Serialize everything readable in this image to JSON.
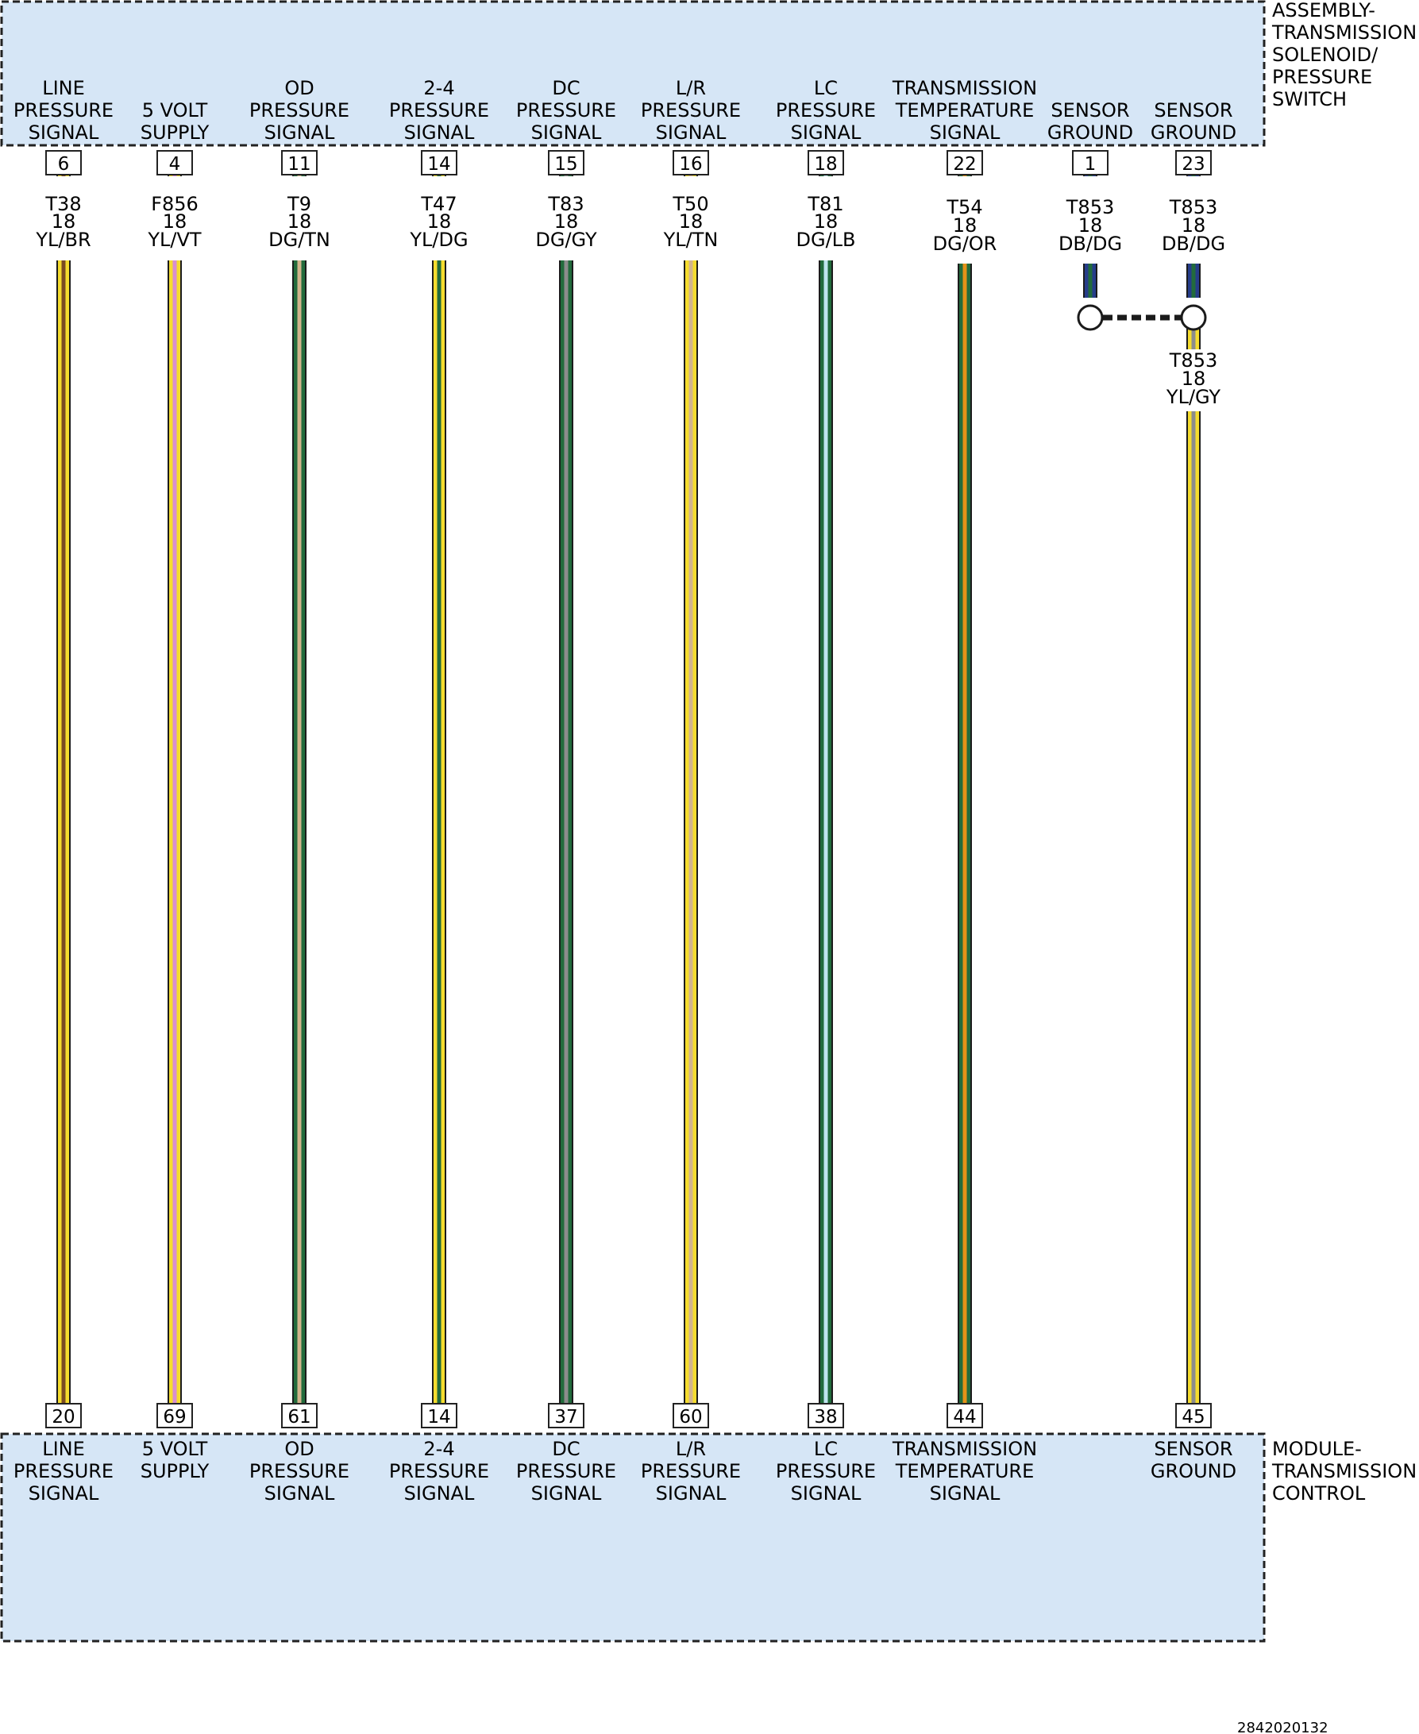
{
  "top_connector": {
    "name_lines": [
      "ASSEMBLY-",
      "TRANSMISSION",
      "SOLENOID/",
      "PRESSURE",
      "SWITCH"
    ],
    "fill": "#d6e6f6"
  },
  "bottom_connector": {
    "name_lines": [
      "MODULE-",
      "TRANSMISSION",
      "CONTROL"
    ],
    "fill": "#d6e6f6"
  },
  "colors": {
    "YL": "#f5dc2e",
    "BR": "#7a4b22",
    "VT": "#d88fd0",
    "DG": "#226b3c",
    "TN": "#d2b48c",
    "GY": "#8c8c8c",
    "LB": "#bfe4ee",
    "OR": "#e39217",
    "DB": "#263d8a"
  },
  "wires": [
    {
      "id": "line-pressure",
      "top_label": [
        "LINE",
        "PRESSURE",
        "SIGNAL"
      ],
      "top_pin": "6",
      "circuit": "T38",
      "gauge": "18",
      "color_code": "YL/BR",
      "base": "YL",
      "stripe": "BR",
      "bottom_pin": "20",
      "bottom_label": [
        "LINE",
        "PRESSURE",
        "SIGNAL"
      ]
    },
    {
      "id": "5-volt-supply",
      "top_label": [
        "5 VOLT",
        "SUPPLY"
      ],
      "top_pin": "4",
      "circuit": "F856",
      "gauge": "18",
      "color_code": "YL/VT",
      "base": "YL",
      "stripe": "VT",
      "bottom_pin": "69",
      "bottom_label": [
        "5 VOLT",
        "SUPPLY"
      ]
    },
    {
      "id": "od-pressure",
      "top_label": [
        "OD",
        "PRESSURE",
        "SIGNAL"
      ],
      "top_pin": "11",
      "circuit": "T9",
      "gauge": "18",
      "color_code": "DG/TN",
      "base": "DG",
      "stripe": "TN",
      "bottom_pin": "61",
      "bottom_label": [
        "OD",
        "PRESSURE",
        "SIGNAL"
      ]
    },
    {
      "id": "2-4-pressure",
      "top_label": [
        "2-4",
        "PRESSURE",
        "SIGNAL"
      ],
      "top_pin": "14",
      "circuit": "T47",
      "gauge": "18",
      "color_code": "YL/DG",
      "base": "YL",
      "stripe": "DG",
      "bottom_pin": "14",
      "bottom_label": [
        "2-4",
        "PRESSURE",
        "SIGNAL"
      ]
    },
    {
      "id": "dc-pressure",
      "top_label": [
        "DC",
        "PRESSURE",
        "SIGNAL"
      ],
      "top_pin": "15",
      "circuit": "T83",
      "gauge": "18",
      "color_code": "DG/GY",
      "base": "DG",
      "stripe": "GY",
      "bottom_pin": "37",
      "bottom_label": [
        "DC",
        "PRESSURE",
        "SIGNAL"
      ]
    },
    {
      "id": "lr-pressure",
      "top_label": [
        "L/R",
        "PRESSURE",
        "SIGNAL"
      ],
      "top_pin": "16",
      "circuit": "T50",
      "gauge": "18",
      "color_code": "YL/TN",
      "base": "YL",
      "stripe": "TN",
      "bottom_pin": "60",
      "bottom_label": [
        "L/R",
        "PRESSURE",
        "SIGNAL"
      ]
    },
    {
      "id": "lc-pressure",
      "top_label": [
        "LC",
        "PRESSURE",
        "SIGNAL"
      ],
      "top_pin": "18",
      "circuit": "T81",
      "gauge": "18",
      "color_code": "DG/LB",
      "base": "DG",
      "stripe": "LB",
      "bottom_pin": "38",
      "bottom_label": [
        "LC",
        "PRESSURE",
        "SIGNAL"
      ]
    },
    {
      "id": "transmission-temperature",
      "top_label": [
        "TRANSMISSION",
        "TEMPERATURE",
        "SIGNAL"
      ],
      "top_pin": "22",
      "circuit": "T54",
      "gauge": "18",
      "color_code": "DG/OR",
      "base": "DG",
      "stripe": "OR",
      "bottom_pin": "44",
      "bottom_label": [
        "TRANSMISSION",
        "TEMPERATURE",
        "SIGNAL"
      ]
    },
    {
      "id": "sensor-ground-1",
      "top_label": [
        "SENSOR",
        "GROUND"
      ],
      "top_pin": "1",
      "circuit": "T853",
      "gauge": "18",
      "color_code": "DB/DG",
      "base": "DB",
      "stripe": "DG"
    },
    {
      "id": "sensor-ground-23",
      "top_label": [
        "SENSOR",
        "GROUND"
      ],
      "top_pin": "23",
      "circuit": "T853",
      "gauge": "18",
      "color_code": "DB/DG",
      "base": "DB",
      "stripe": "DG",
      "bottom_pin": "45",
      "bottom_label": [
        "SENSOR",
        "GROUND"
      ],
      "after_splice": {
        "circuit": "T853",
        "gauge": "18",
        "color_code": "YL/GY",
        "base": "YL",
        "stripe": "GY"
      }
    }
  ],
  "footer_id": "2842020132"
}
